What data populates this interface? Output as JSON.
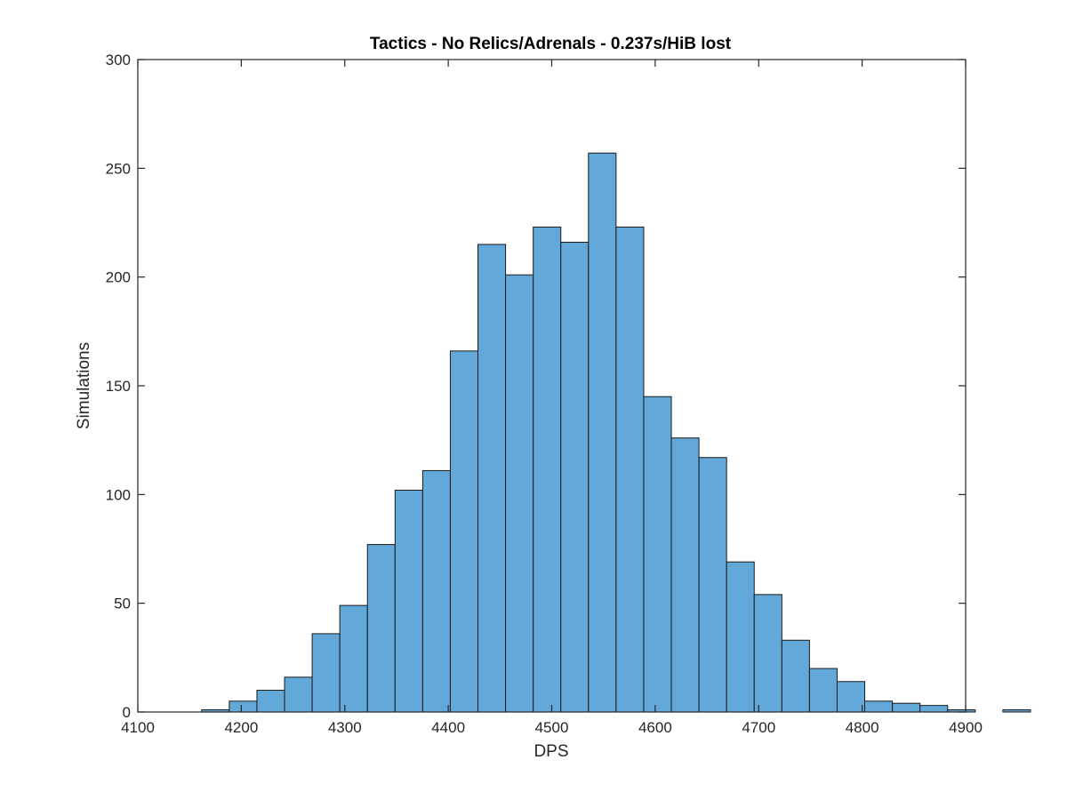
{
  "chart_data": {
    "type": "bar",
    "title": "Tactics - No Relics/Adrenals - 0.237s/HiB lost",
    "xlabel": "DPS",
    "ylabel": "Simulations",
    "xlim": [
      4100,
      4900
    ],
    "ylim": [
      0,
      300
    ],
    "xticks": [
      4100,
      4200,
      4300,
      4400,
      4500,
      4600,
      4700,
      4800,
      4900
    ],
    "yticks": [
      0,
      50,
      100,
      150,
      200,
      250,
      300
    ],
    "bin_start": 4135,
    "bin_width": 26.7,
    "values": [
      0,
      1,
      5,
      10,
      16,
      36,
      49,
      77,
      102,
      111,
      166,
      215,
      201,
      223,
      216,
      257,
      223,
      145,
      126,
      117,
      69,
      54,
      33,
      20,
      14,
      5,
      4,
      3,
      1,
      0,
      1
    ],
    "grid": false,
    "bar_color": "#62a8d8"
  }
}
